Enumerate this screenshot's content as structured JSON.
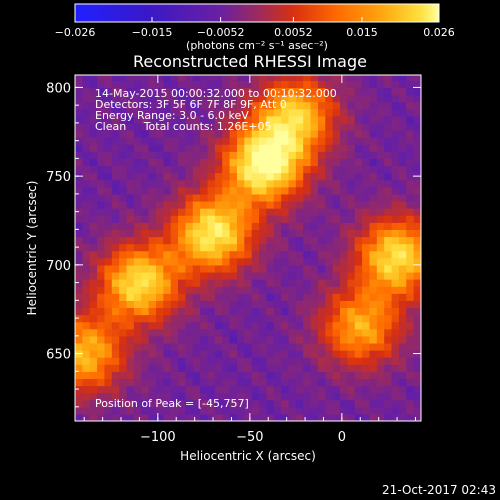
{
  "chart_data": {
    "type": "heatmap",
    "title": "Reconstructed RHESSI Image",
    "xlabel": "Heliocentric X (arcsec)",
    "ylabel": "Heliocentric Y (arcsec)",
    "xlim": [
      -145,
      43
    ],
    "ylim": [
      612,
      807
    ],
    "x_ticks": [
      -100,
      -50,
      0
    ],
    "x_tick_labels": [
      "−100",
      "−50",
      "0"
    ],
    "y_ticks": [
      650,
      700,
      750,
      800
    ],
    "y_tick_labels": [
      "650",
      "700",
      "750",
      "800"
    ],
    "colorbar": {
      "range": [
        -0.026,
        0.026
      ],
      "ticks": [
        -0.026,
        -0.015,
        -0.0052,
        0.0052,
        0.015,
        0.026
      ],
      "tick_labels": [
        "−0.026",
        "−0.015",
        "−0.0052",
        "0.0052",
        "0.015",
        "0.026"
      ],
      "unit_label": "(photons cm⁻² s⁻¹ asec⁻²)",
      "colors": [
        "#2020ff",
        "#3a18c8",
        "#6a20a0",
        "#9a2a60",
        "#d83010",
        "#ff6a00",
        "#ffaa10",
        "#ffe040",
        "#ffffa0"
      ]
    },
    "annotations": [
      "14-May-2015 00:00:32.000 to 00:10:32.000",
      "Detectors: 3F 5F 6F 7F 8F 9F, Att 0",
      "Energy Range: 3.0 - 6.0 keV",
      "Clean     Total counts: 1.26E+05"
    ],
    "peak_label": "Position of Peak = [-45,757]",
    "peak": [
      -45,
      757
    ],
    "sources": [
      {
        "x": -42,
        "y": 757,
        "intensity": 0.026
      },
      {
        "x": -70,
        "y": 718,
        "intensity": 0.022
      },
      {
        "x": -110,
        "y": 690,
        "intensity": 0.02
      },
      {
        "x": -25,
        "y": 785,
        "intensity": 0.016
      },
      {
        "x": 30,
        "y": 705,
        "intensity": 0.02
      },
      {
        "x": 10,
        "y": 665,
        "intensity": 0.013
      },
      {
        "x": -140,
        "y": 650,
        "intensity": 0.015
      }
    ]
  },
  "footer": {
    "date": "21-Oct-2017 02:43"
  }
}
